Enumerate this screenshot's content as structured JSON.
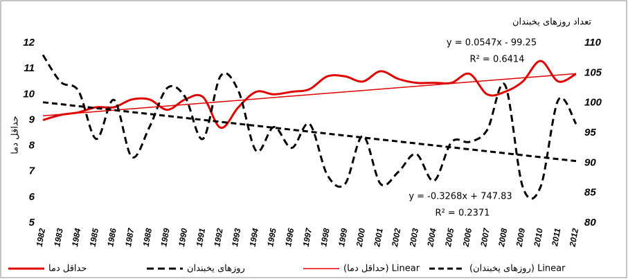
{
  "chart_data": {
    "type": "line",
    "y_label": "حداقل دما",
    "y2_label": "تعداد روزهای یخبندان",
    "x": [
      1982,
      1983,
      1984,
      1985,
      1986,
      1987,
      1988,
      1989,
      1990,
      1991,
      1992,
      1993,
      1994,
      1995,
      1996,
      1997,
      1998,
      1999,
      2000,
      2001,
      2002,
      2003,
      2004,
      2005,
      2006,
      2007,
      2008,
      2009,
      2010,
      2011,
      2012
    ],
    "xlim": [
      1982,
      2012
    ],
    "ylim": [
      5,
      12
    ],
    "yticks": [
      5,
      6,
      7,
      8,
      9,
      10,
      11,
      12
    ],
    "y2lim": [
      80,
      110
    ],
    "y2ticks": [
      80,
      85,
      90,
      95,
      100,
      105,
      110
    ],
    "series": [
      {
        "name": "حداقل دما",
        "color": "#e00000",
        "axis": "y",
        "values": [
          9.0,
          9.2,
          9.3,
          9.5,
          9.5,
          9.8,
          9.8,
          9.4,
          9.8,
          9.9,
          8.7,
          9.5,
          10.1,
          10.0,
          10.1,
          10.2,
          10.7,
          10.7,
          10.5,
          10.9,
          10.6,
          10.45,
          10.45,
          10.45,
          10.8,
          10.0,
          10.1,
          10.5,
          11.3,
          10.5,
          10.8
        ]
      },
      {
        "name": "روزهای یخبندان",
        "color": "#000000",
        "axis": "y2",
        "values": [
          108,
          103.5,
          102,
          94,
          100.5,
          91,
          96,
          102.5,
          101,
          94,
          104.5,
          102,
          92,
          96,
          92.5,
          96.5,
          88,
          86.5,
          94.5,
          86.5,
          88.5,
          91.5,
          87,
          93.5,
          93.5,
          95.5,
          103,
          86,
          86,
          100.5,
          96.5
        ]
      }
    ],
    "trendlines": [
      {
        "name": "Linear (حداقل دما)",
        "color": "#e00000",
        "axis": "y",
        "slope": 0.0547,
        "intercept": -99.25,
        "equation": "y = 0.0547x - 99.25",
        "r2": "R² = 0.6414"
      },
      {
        "name": "Linear (روزهای یخبندان)",
        "color": "#000000",
        "axis": "y2",
        "slope": -0.3268,
        "intercept": 747.83,
        "equation": "y = -0.3268x + 747.83",
        "r2": "R² = 0.2371"
      }
    ]
  }
}
